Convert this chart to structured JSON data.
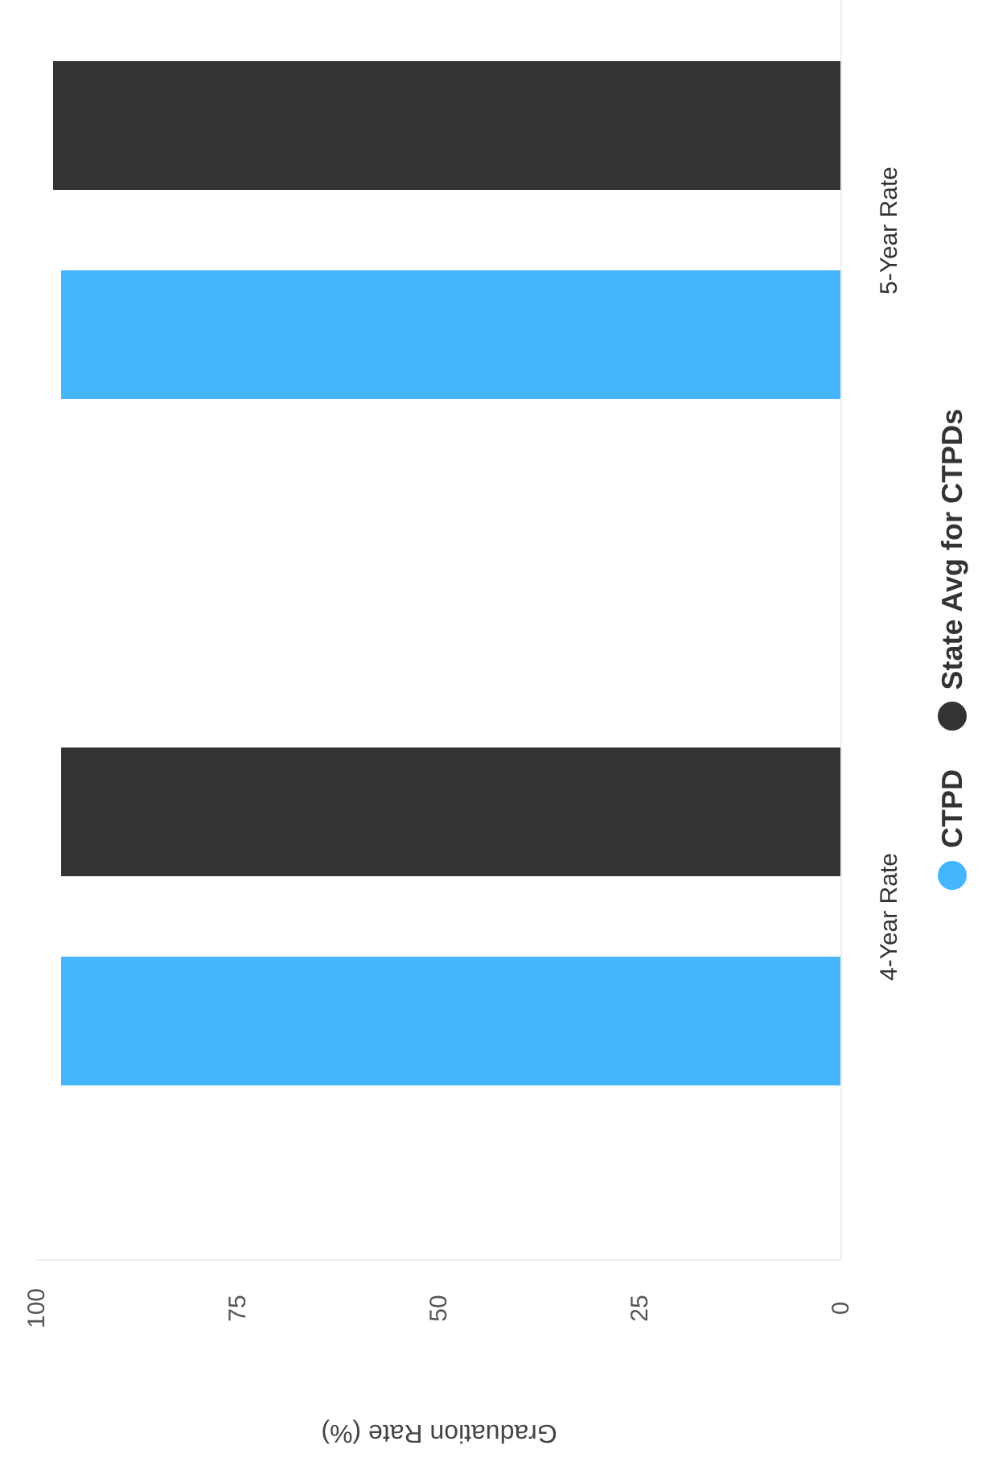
{
  "chart_data": {
    "type": "bar",
    "orientation": "horizontal",
    "xlabel": "Graduation Rate (%)",
    "categories": [
      "5-Year Rate",
      "4-Year Rate"
    ],
    "series": [
      {
        "name": "CTPD",
        "color": "#45b5fc",
        "values": [
          97,
          97
        ]
      },
      {
        "name": "State Avg for CTPDs",
        "color": "#333333",
        "values": [
          98,
          97
        ]
      }
    ],
    "xlim": [
      100,
      0
    ],
    "xticks": [
      100,
      75,
      50,
      25,
      0
    ],
    "legend": "right"
  }
}
